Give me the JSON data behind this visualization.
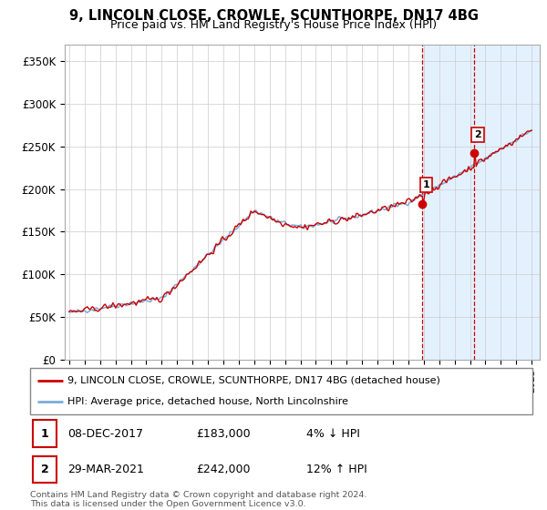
{
  "title": "9, LINCOLN CLOSE, CROWLE, SCUNTHORPE, DN17 4BG",
  "subtitle": "Price paid vs. HM Land Registry's House Price Index (HPI)",
  "legend_line1": "9, LINCOLN CLOSE, CROWLE, SCUNTHORPE, DN17 4BG (detached house)",
  "legend_line2": "HPI: Average price, detached house, North Lincolnshire",
  "transaction1_date": "08-DEC-2017",
  "transaction1_price": "£183,000",
  "transaction1_hpi": "4% ↓ HPI",
  "transaction2_date": "29-MAR-2021",
  "transaction2_price": "£242,000",
  "transaction2_hpi": "12% ↑ HPI",
  "footer": "Contains HM Land Registry data © Crown copyright and database right 2024.\nThis data is licensed under the Open Government Licence v3.0.",
  "line_color_property": "#cc0000",
  "line_color_hpi": "#7aaddc",
  "highlight_bg": "#ddeeff",
  "vline_color": "#cc0000",
  "ylim": [
    0,
    370000
  ],
  "yticks": [
    0,
    50000,
    100000,
    150000,
    200000,
    250000,
    300000,
    350000
  ],
  "ytick_labels": [
    "£0",
    "£50K",
    "£100K",
    "£150K",
    "£200K",
    "£250K",
    "£300K",
    "£350K"
  ],
  "xmin": 1994.7,
  "xmax": 2025.5,
  "t1_x": 2017.92,
  "t1_y": 183000,
  "t2_x": 2021.25,
  "t2_y": 242000
}
